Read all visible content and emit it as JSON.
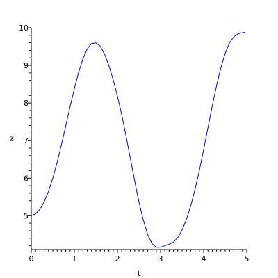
{
  "chart_data": {
    "type": "line",
    "title": "",
    "xlabel": "t",
    "ylabel": "z",
    "xlim": [
      0,
      5
    ],
    "ylim": [
      4.1,
      10
    ],
    "x_ticks": [
      0,
      1,
      2,
      3,
      4,
      5
    ],
    "x_tick_labels": [
      "0",
      "1",
      "2",
      "3",
      "4",
      "5"
    ],
    "y_ticks": [
      5,
      6,
      7,
      8,
      9,
      10
    ],
    "y_tick_labels": [
      "5",
      "6",
      "7",
      "8",
      "9",
      "10"
    ],
    "grid": false,
    "series": [
      {
        "color": "#0000cc",
        "x": [
          0,
          0.1,
          0.2,
          0.3,
          0.4,
          0.5,
          0.6,
          0.7,
          0.8,
          0.9,
          1.0,
          1.1,
          1.2,
          1.3,
          1.4,
          1.5,
          1.6,
          1.7,
          1.8,
          1.9,
          2.0,
          2.1,
          2.2,
          2.3,
          2.4,
          2.5,
          2.6,
          2.7,
          2.8,
          2.9,
          3.0,
          3.1,
          3.2,
          3.3,
          3.4,
          3.5,
          3.6,
          3.7,
          3.8,
          3.9,
          4.0,
          4.1,
          4.2,
          4.3,
          4.4,
          4.5,
          4.6,
          4.7,
          4.8,
          4.9,
          4.95
        ],
        "y": [
          5.0,
          5.05,
          5.17,
          5.37,
          5.65,
          6.0,
          6.42,
          6.89,
          7.39,
          7.9,
          8.38,
          8.82,
          9.18,
          9.44,
          9.58,
          9.6,
          9.51,
          9.3,
          9.0,
          8.62,
          8.18,
          7.68,
          7.12,
          6.52,
          5.92,
          5.36,
          4.88,
          4.5,
          4.26,
          4.16,
          4.16,
          4.2,
          4.24,
          4.3,
          4.42,
          4.62,
          4.9,
          5.26,
          5.7,
          6.2,
          6.76,
          7.34,
          7.92,
          8.46,
          8.94,
          9.32,
          9.6,
          9.76,
          9.84,
          9.87,
          9.88
        ]
      }
    ]
  }
}
